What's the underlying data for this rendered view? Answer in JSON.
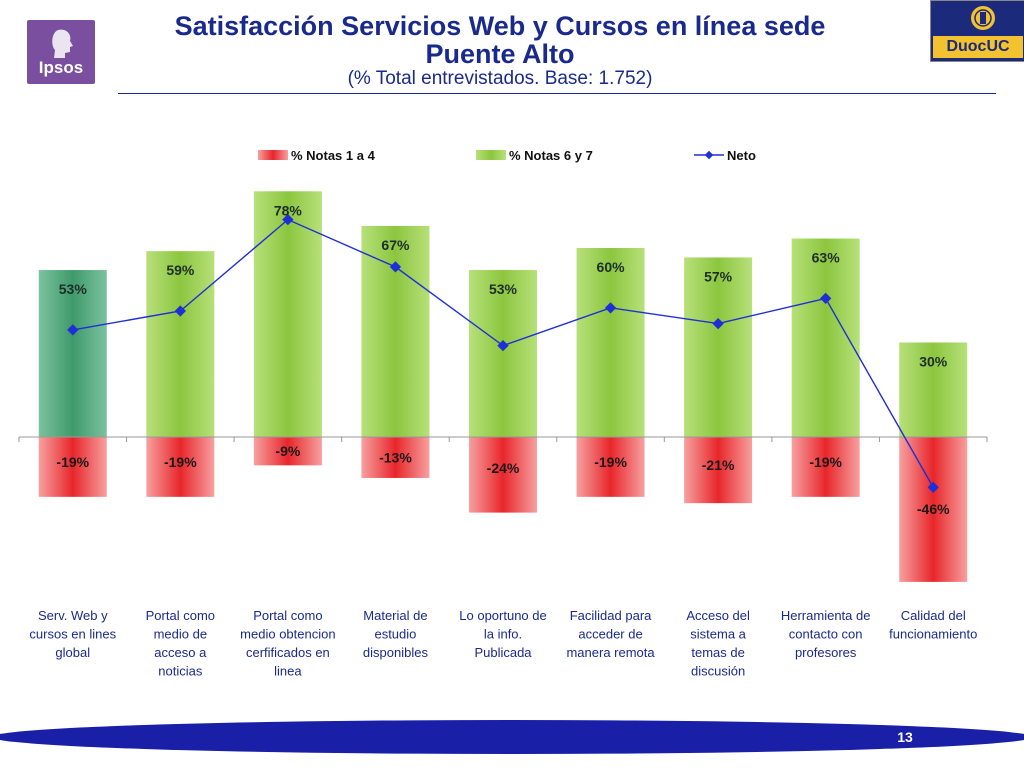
{
  "header": {
    "title_line1": "Satisfacción Servicios Web y Cursos en línea sede",
    "title_line2": "Puente Alto",
    "subtitle": "(% Total entrevistados. Base: 1.752)"
  },
  "logos": {
    "left_text": "Ipsos",
    "right_text": "DuocUC"
  },
  "footer": {
    "page_number": "13"
  },
  "colors": {
    "title": "#1a2a8c",
    "green_bar": "#8cc63f",
    "green_bar_first": "#3f9a6a",
    "red_bar": "#e8262b",
    "neto_line": "#1f2fd6",
    "footer_band": "#1a1fa8"
  },
  "chart_data": {
    "type": "bar",
    "categories": [
      [
        "Serv. Web y",
        "cursos en lines",
        "global"
      ],
      [
        "Portal como",
        "medio de",
        "acceso a",
        "noticias"
      ],
      [
        "Portal como",
        "medio obtencion",
        "cerfificados en",
        "linea"
      ],
      [
        "Material de",
        "estudio",
        "disponibles"
      ],
      [
        "Lo oportuno de",
        "la info.",
        "Publicada"
      ],
      [
        "Facilidad para",
        "acceder de",
        "manera remota"
      ],
      [
        "Acceso del",
        "sistema a",
        "temas de",
        "discusión"
      ],
      [
        "Herramienta de",
        "contacto con",
        "profesores"
      ],
      [
        "Calidad del",
        "funcionamiento"
      ]
    ],
    "series": [
      {
        "name": "% Notas 1 a 4",
        "kind": "bar",
        "values": [
          -19,
          -19,
          -9,
          -13,
          -24,
          -19,
          -21,
          -19,
          -46
        ],
        "labels": [
          "-19%",
          "-19%",
          "-9%",
          "-13%",
          "-24%",
          "-19%",
          "-21%",
          "-19%",
          "-46%"
        ]
      },
      {
        "name": "% Notas 6 y 7",
        "kind": "bar",
        "values": [
          53,
          59,
          78,
          67,
          53,
          60,
          57,
          63,
          30
        ],
        "labels": [
          "53%",
          "59%",
          "78%",
          "67%",
          "53%",
          "60%",
          "57%",
          "63%",
          "30%"
        ]
      },
      {
        "name": "Neto",
        "kind": "line",
        "values": [
          34,
          40,
          69,
          54,
          29,
          41,
          36,
          44,
          -16
        ]
      }
    ],
    "ylim": [
      -48,
      82
    ],
    "legend": "top"
  }
}
